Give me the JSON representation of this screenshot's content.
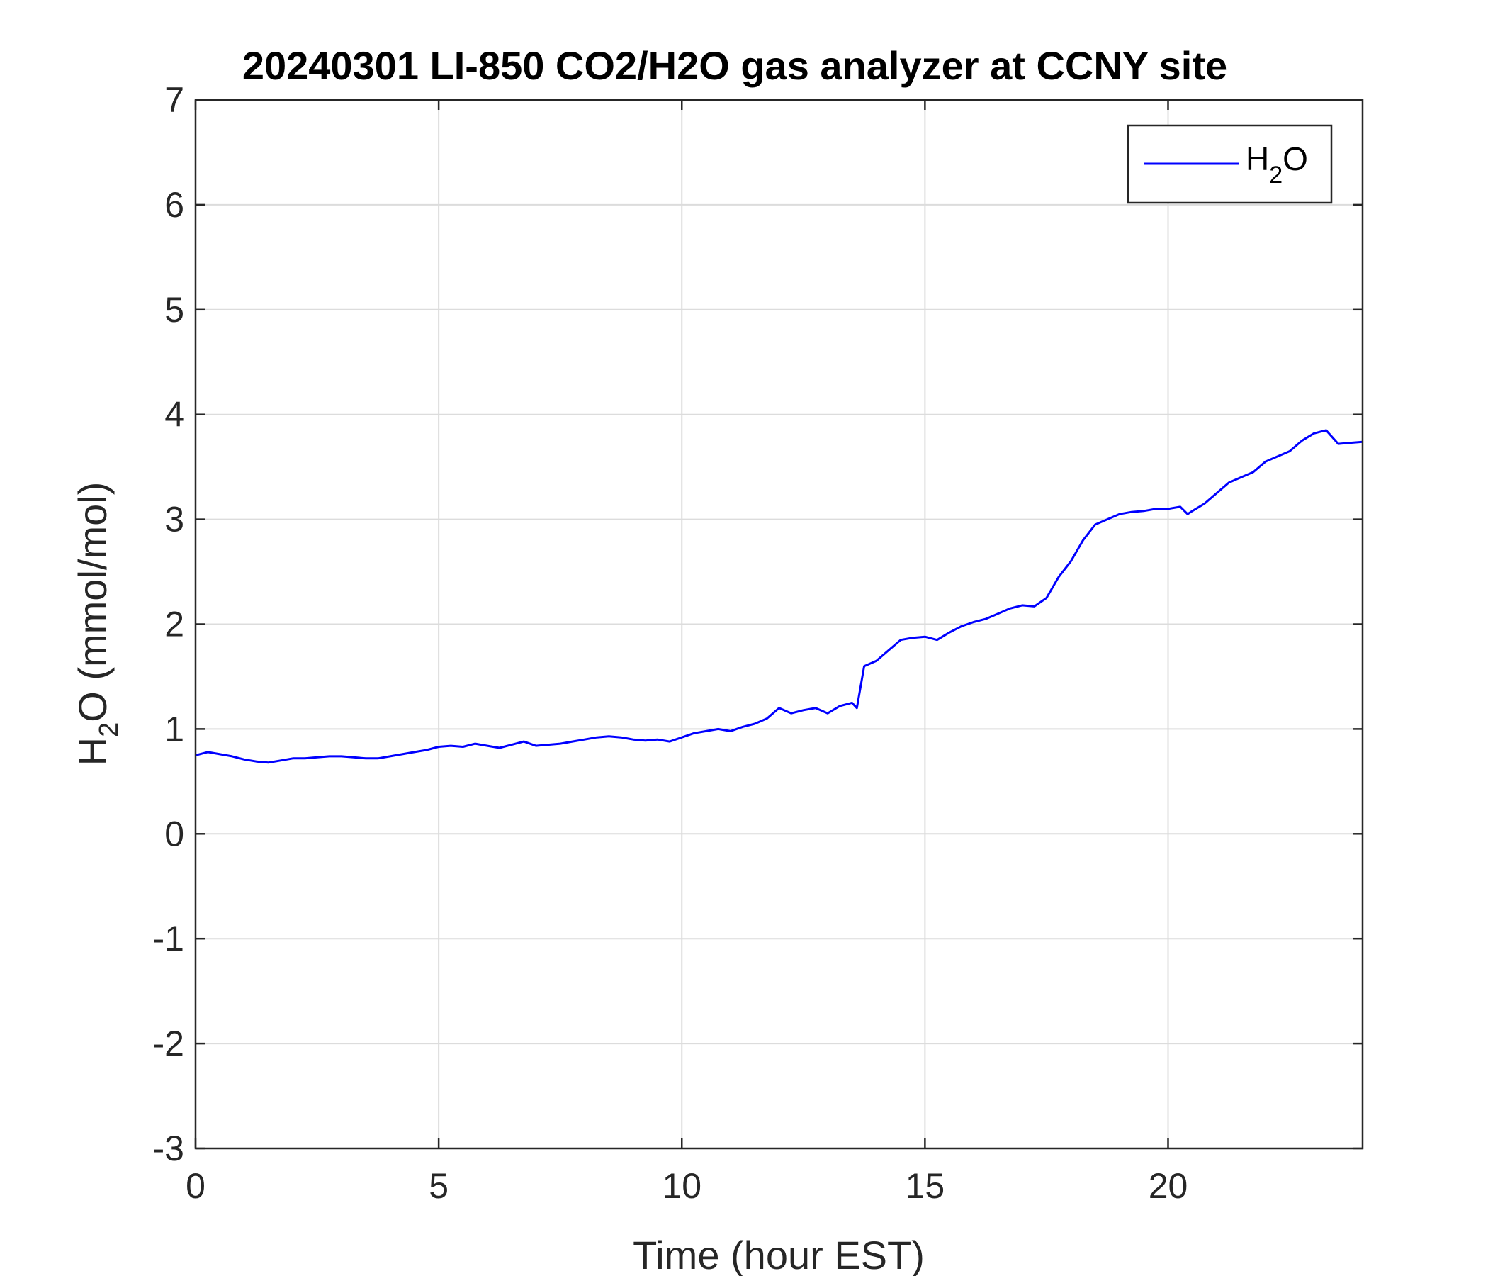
{
  "chart_data": {
    "type": "line",
    "title": "20240301 LI-850 CO2/H2O gas analyzer at CCNY site",
    "xlabel": "Time (hour EST)",
    "ylabel": {
      "main": "H",
      "sub": "2",
      "rest": "O (mmol/mol)"
    },
    "xlim": [
      0,
      24
    ],
    "ylim": [
      -3,
      7
    ],
    "xticks": [
      0,
      5,
      10,
      15,
      20
    ],
    "yticks": [
      -3,
      -2,
      -1,
      0,
      1,
      2,
      3,
      4,
      5,
      6,
      7
    ],
    "grid": true,
    "legend_position": "top-right",
    "series": [
      {
        "name": {
          "main": "H",
          "sub": "2",
          "rest": "O"
        },
        "color": "#0000ff",
        "x": [
          0,
          0.25,
          0.5,
          0.75,
          1,
          1.25,
          1.5,
          1.75,
          2,
          2.25,
          2.5,
          2.75,
          3,
          3.25,
          3.5,
          3.75,
          4,
          4.25,
          4.5,
          4.75,
          5,
          5.25,
          5.5,
          5.75,
          6,
          6.25,
          6.5,
          6.75,
          7,
          7.25,
          7.5,
          7.75,
          8,
          8.25,
          8.5,
          8.75,
          9,
          9.25,
          9.5,
          9.75,
          10,
          10.25,
          10.5,
          10.75,
          11,
          11.25,
          11.5,
          11.75,
          12,
          12.25,
          12.5,
          12.75,
          13,
          13.25,
          13.5,
          13.6,
          13.75,
          14,
          14.25,
          14.5,
          14.75,
          15,
          15.25,
          15.5,
          15.75,
          16,
          16.25,
          16.5,
          16.75,
          17,
          17.25,
          17.5,
          17.75,
          18,
          18.25,
          18.5,
          18.75,
          19,
          19.25,
          19.5,
          19.75,
          20,
          20.25,
          20.4,
          20.5,
          20.75,
          21,
          21.25,
          21.5,
          21.75,
          22,
          22.25,
          22.5,
          22.75,
          23,
          23.25,
          23.5,
          23.75,
          24
        ],
        "y": [
          0.75,
          0.78,
          0.76,
          0.74,
          0.71,
          0.69,
          0.68,
          0.7,
          0.72,
          0.72,
          0.73,
          0.74,
          0.74,
          0.73,
          0.72,
          0.72,
          0.74,
          0.76,
          0.78,
          0.8,
          0.83,
          0.84,
          0.83,
          0.86,
          0.84,
          0.82,
          0.85,
          0.88,
          0.84,
          0.85,
          0.86,
          0.88,
          0.9,
          0.92,
          0.93,
          0.92,
          0.9,
          0.89,
          0.9,
          0.88,
          0.92,
          0.96,
          0.98,
          1.0,
          0.98,
          1.02,
          1.05,
          1.1,
          1.2,
          1.15,
          1.18,
          1.2,
          1.15,
          1.22,
          1.25,
          1.2,
          1.6,
          1.65,
          1.75,
          1.85,
          1.87,
          1.88,
          1.85,
          1.92,
          1.98,
          2.02,
          2.05,
          2.1,
          2.15,
          2.18,
          2.17,
          2.25,
          2.45,
          2.6,
          2.8,
          2.95,
          3.0,
          3.05,
          3.07,
          3.08,
          3.1,
          3.1,
          3.12,
          3.05,
          3.08,
          3.15,
          3.25,
          3.35,
          3.4,
          3.45,
          3.55,
          3.6,
          3.65,
          3.75,
          3.82,
          3.85,
          3.72,
          3.73,
          3.74
        ]
      }
    ]
  }
}
